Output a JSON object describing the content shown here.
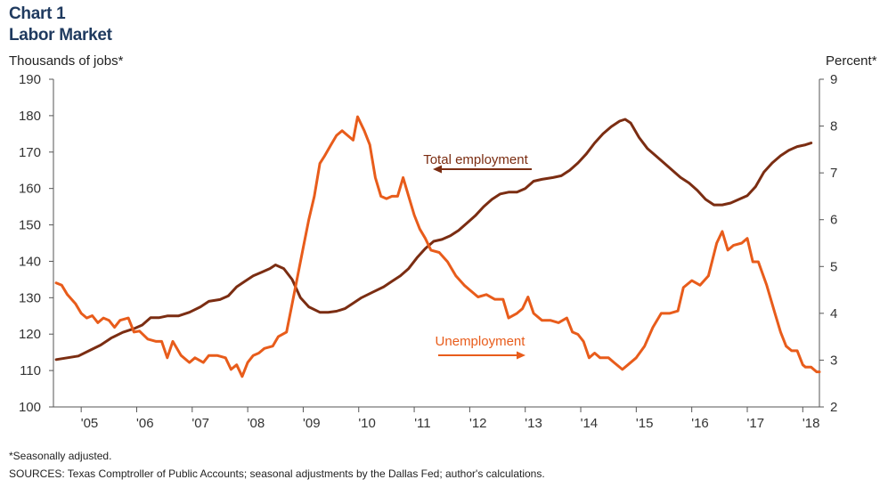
{
  "header": {
    "line1": "Chart 1",
    "line2": "Labor Market"
  },
  "footnotes": {
    "note": "*Seasonally adjusted.",
    "sources": "SOURCES: Texas Comptroller of Public Accounts; seasonal adjustments by the Dallas Fed; author's calculations."
  },
  "colors": {
    "employment": "#7b2d12",
    "unemployment": "#e85c1b",
    "title": "#1f3a5f",
    "axis": "#555555"
  },
  "chart_data": {
    "type": "line",
    "title": "Labor Market",
    "x_label": "",
    "x_ticks": [
      "'05",
      "'06",
      "'07",
      "'08",
      "'09",
      "'10",
      "'11",
      "'12",
      "'13",
      "'14",
      "'15",
      "'16",
      "'17",
      "'18"
    ],
    "x_range": [
      2004.5,
      2018.3
    ],
    "y_left": {
      "label": "Thousands of jobs*",
      "range": [
        100,
        190
      ],
      "ticks": [
        100,
        110,
        120,
        130,
        140,
        150,
        160,
        170,
        180,
        190
      ]
    },
    "y_right": {
      "label": "Percent*",
      "range": [
        2,
        9
      ],
      "ticks": [
        2,
        3,
        4,
        5,
        6,
        7,
        8,
        9
      ]
    },
    "grid": false,
    "annotations": [
      {
        "text": "Total employment",
        "series": "Total employment",
        "arrow": "left"
      },
      {
        "text": "Unemployment",
        "series": "Unemployment",
        "arrow": "right"
      }
    ],
    "series": [
      {
        "name": "Total employment",
        "axis": "left",
        "points": [
          [
            2004.55,
            113
          ],
          [
            2004.75,
            113.5
          ],
          [
            2004.95,
            114
          ],
          [
            2005.15,
            115.5
          ],
          [
            2005.35,
            117
          ],
          [
            2005.55,
            119
          ],
          [
            2005.75,
            120.5
          ],
          [
            2005.95,
            121.5
          ],
          [
            2006.1,
            122.5
          ],
          [
            2006.25,
            124.5
          ],
          [
            2006.4,
            124.5
          ],
          [
            2006.55,
            125
          ],
          [
            2006.75,
            125
          ],
          [
            2006.95,
            126
          ],
          [
            2007.15,
            127.5
          ],
          [
            2007.3,
            129
          ],
          [
            2007.5,
            129.5
          ],
          [
            2007.65,
            130.5
          ],
          [
            2007.8,
            133
          ],
          [
            2007.95,
            134.5
          ],
          [
            2008.1,
            136
          ],
          [
            2008.25,
            137
          ],
          [
            2008.4,
            138
          ],
          [
            2008.5,
            139
          ],
          [
            2008.65,
            138
          ],
          [
            2008.8,
            135
          ],
          [
            2008.95,
            130
          ],
          [
            2009.1,
            127.5
          ],
          [
            2009.3,
            126
          ],
          [
            2009.45,
            126
          ],
          [
            2009.6,
            126.3
          ],
          [
            2009.75,
            127
          ],
          [
            2009.9,
            128.5
          ],
          [
            2010.05,
            130
          ],
          [
            2010.25,
            131.5
          ],
          [
            2010.45,
            133
          ],
          [
            2010.6,
            134.5
          ],
          [
            2010.75,
            136
          ],
          [
            2010.9,
            138
          ],
          [
            2011.05,
            141
          ],
          [
            2011.2,
            143.5
          ],
          [
            2011.35,
            145.5
          ],
          [
            2011.5,
            146
          ],
          [
            2011.65,
            147
          ],
          [
            2011.8,
            148.5
          ],
          [
            2011.95,
            150.5
          ],
          [
            2012.1,
            152.5
          ],
          [
            2012.25,
            155
          ],
          [
            2012.4,
            157
          ],
          [
            2012.55,
            158.5
          ],
          [
            2012.7,
            159
          ],
          [
            2012.85,
            159
          ],
          [
            2013.0,
            160
          ],
          [
            2013.15,
            162
          ],
          [
            2013.3,
            162.5
          ],
          [
            2013.5,
            163
          ],
          [
            2013.65,
            163.5
          ],
          [
            2013.8,
            165
          ],
          [
            2013.95,
            167
          ],
          [
            2014.1,
            169.5
          ],
          [
            2014.25,
            172.5
          ],
          [
            2014.4,
            175
          ],
          [
            2014.55,
            177
          ],
          [
            2014.7,
            178.5
          ],
          [
            2014.8,
            179
          ],
          [
            2014.9,
            178
          ],
          [
            2015.05,
            174
          ],
          [
            2015.2,
            171
          ],
          [
            2015.35,
            169
          ],
          [
            2015.5,
            167
          ],
          [
            2015.65,
            165
          ],
          [
            2015.8,
            163
          ],
          [
            2015.95,
            161.5
          ],
          [
            2016.1,
            159.5
          ],
          [
            2016.25,
            157
          ],
          [
            2016.4,
            155.5
          ],
          [
            2016.55,
            155.5
          ],
          [
            2016.7,
            156
          ],
          [
            2016.85,
            157
          ],
          [
            2017.0,
            158
          ],
          [
            2017.15,
            160.5
          ],
          [
            2017.3,
            164.5
          ],
          [
            2017.45,
            167
          ],
          [
            2017.6,
            169
          ],
          [
            2017.75,
            170.5
          ],
          [
            2017.9,
            171.5
          ],
          [
            2018.05,
            172
          ],
          [
            2018.15,
            172.5
          ]
        ]
      },
      {
        "name": "Unemployment",
        "axis": "right",
        "points": [
          [
            2004.55,
            4.65
          ],
          [
            2004.65,
            4.6
          ],
          [
            2004.75,
            4.4
          ],
          [
            2004.9,
            4.2
          ],
          [
            2005.0,
            4.0
          ],
          [
            2005.1,
            3.9
          ],
          [
            2005.2,
            3.95
          ],
          [
            2005.3,
            3.8
          ],
          [
            2005.4,
            3.9
          ],
          [
            2005.5,
            3.85
          ],
          [
            2005.6,
            3.7
          ],
          [
            2005.7,
            3.85
          ],
          [
            2005.85,
            3.9
          ],
          [
            2005.95,
            3.6
          ],
          [
            2006.05,
            3.62
          ],
          [
            2006.2,
            3.45
          ],
          [
            2006.35,
            3.4
          ],
          [
            2006.45,
            3.4
          ],
          [
            2006.55,
            3.05
          ],
          [
            2006.65,
            3.4
          ],
          [
            2006.8,
            3.1
          ],
          [
            2006.95,
            2.95
          ],
          [
            2007.05,
            3.05
          ],
          [
            2007.2,
            2.95
          ],
          [
            2007.3,
            3.1
          ],
          [
            2007.45,
            3.1
          ],
          [
            2007.6,
            3.05
          ],
          [
            2007.7,
            2.8
          ],
          [
            2007.8,
            2.9
          ],
          [
            2007.9,
            2.65
          ],
          [
            2008.0,
            2.95
          ],
          [
            2008.1,
            3.1
          ],
          [
            2008.2,
            3.15
          ],
          [
            2008.3,
            3.25
          ],
          [
            2008.45,
            3.3
          ],
          [
            2008.55,
            3.5
          ],
          [
            2008.7,
            3.6
          ],
          [
            2008.8,
            4.2
          ],
          [
            2008.9,
            4.8
          ],
          [
            2009.0,
            5.4
          ],
          [
            2009.1,
            6.0
          ],
          [
            2009.2,
            6.5
          ],
          [
            2009.3,
            7.2
          ],
          [
            2009.38,
            7.35
          ],
          [
            2009.5,
            7.6
          ],
          [
            2009.6,
            7.8
          ],
          [
            2009.7,
            7.9
          ],
          [
            2009.8,
            7.8
          ],
          [
            2009.9,
            7.7
          ],
          [
            2009.98,
            8.2
          ],
          [
            2010.1,
            7.9
          ],
          [
            2010.2,
            7.6
          ],
          [
            2010.3,
            6.9
          ],
          [
            2010.4,
            6.5
          ],
          [
            2010.5,
            6.45
          ],
          [
            2010.6,
            6.5
          ],
          [
            2010.7,
            6.5
          ],
          [
            2010.8,
            6.9
          ],
          [
            2010.9,
            6.5
          ],
          [
            2011.0,
            6.1
          ],
          [
            2011.1,
            5.8
          ],
          [
            2011.2,
            5.6
          ],
          [
            2011.3,
            5.35
          ],
          [
            2011.45,
            5.3
          ],
          [
            2011.6,
            5.1
          ],
          [
            2011.75,
            4.8
          ],
          [
            2011.9,
            4.6
          ],
          [
            2012.0,
            4.5
          ],
          [
            2012.15,
            4.35
          ],
          [
            2012.3,
            4.4
          ],
          [
            2012.45,
            4.3
          ],
          [
            2012.6,
            4.3
          ],
          [
            2012.7,
            3.9
          ],
          [
            2012.85,
            4.0
          ],
          [
            2012.95,
            4.1
          ],
          [
            2013.05,
            4.35
          ],
          [
            2013.15,
            4.0
          ],
          [
            2013.3,
            3.85
          ],
          [
            2013.45,
            3.85
          ],
          [
            2013.6,
            3.8
          ],
          [
            2013.75,
            3.9
          ],
          [
            2013.85,
            3.6
          ],
          [
            2013.95,
            3.55
          ],
          [
            2014.05,
            3.4
          ],
          [
            2014.15,
            3.05
          ],
          [
            2014.25,
            3.15
          ],
          [
            2014.35,
            3.05
          ],
          [
            2014.5,
            3.05
          ],
          [
            2014.6,
            2.95
          ],
          [
            2014.75,
            2.8
          ],
          [
            2014.85,
            2.9
          ],
          [
            2015.0,
            3.05
          ],
          [
            2015.15,
            3.3
          ],
          [
            2015.3,
            3.7
          ],
          [
            2015.45,
            4.0
          ],
          [
            2015.6,
            4.0
          ],
          [
            2015.75,
            4.05
          ],
          [
            2015.85,
            4.55
          ],
          [
            2016.0,
            4.7
          ],
          [
            2016.15,
            4.6
          ],
          [
            2016.3,
            4.8
          ],
          [
            2016.45,
            5.5
          ],
          [
            2016.55,
            5.75
          ],
          [
            2016.65,
            5.35
          ],
          [
            2016.75,
            5.45
          ],
          [
            2016.9,
            5.5
          ],
          [
            2017.0,
            5.6
          ],
          [
            2017.1,
            5.1
          ],
          [
            2017.2,
            5.1
          ],
          [
            2017.35,
            4.6
          ],
          [
            2017.5,
            4.0
          ],
          [
            2017.6,
            3.6
          ],
          [
            2017.7,
            3.3
          ],
          [
            2017.8,
            3.2
          ],
          [
            2017.9,
            3.2
          ],
          [
            2018.0,
            2.9
          ],
          [
            2018.05,
            2.85
          ],
          [
            2018.15,
            2.85
          ],
          [
            2018.25,
            2.75
          ],
          [
            2018.3,
            2.75
          ]
        ]
      }
    ]
  }
}
